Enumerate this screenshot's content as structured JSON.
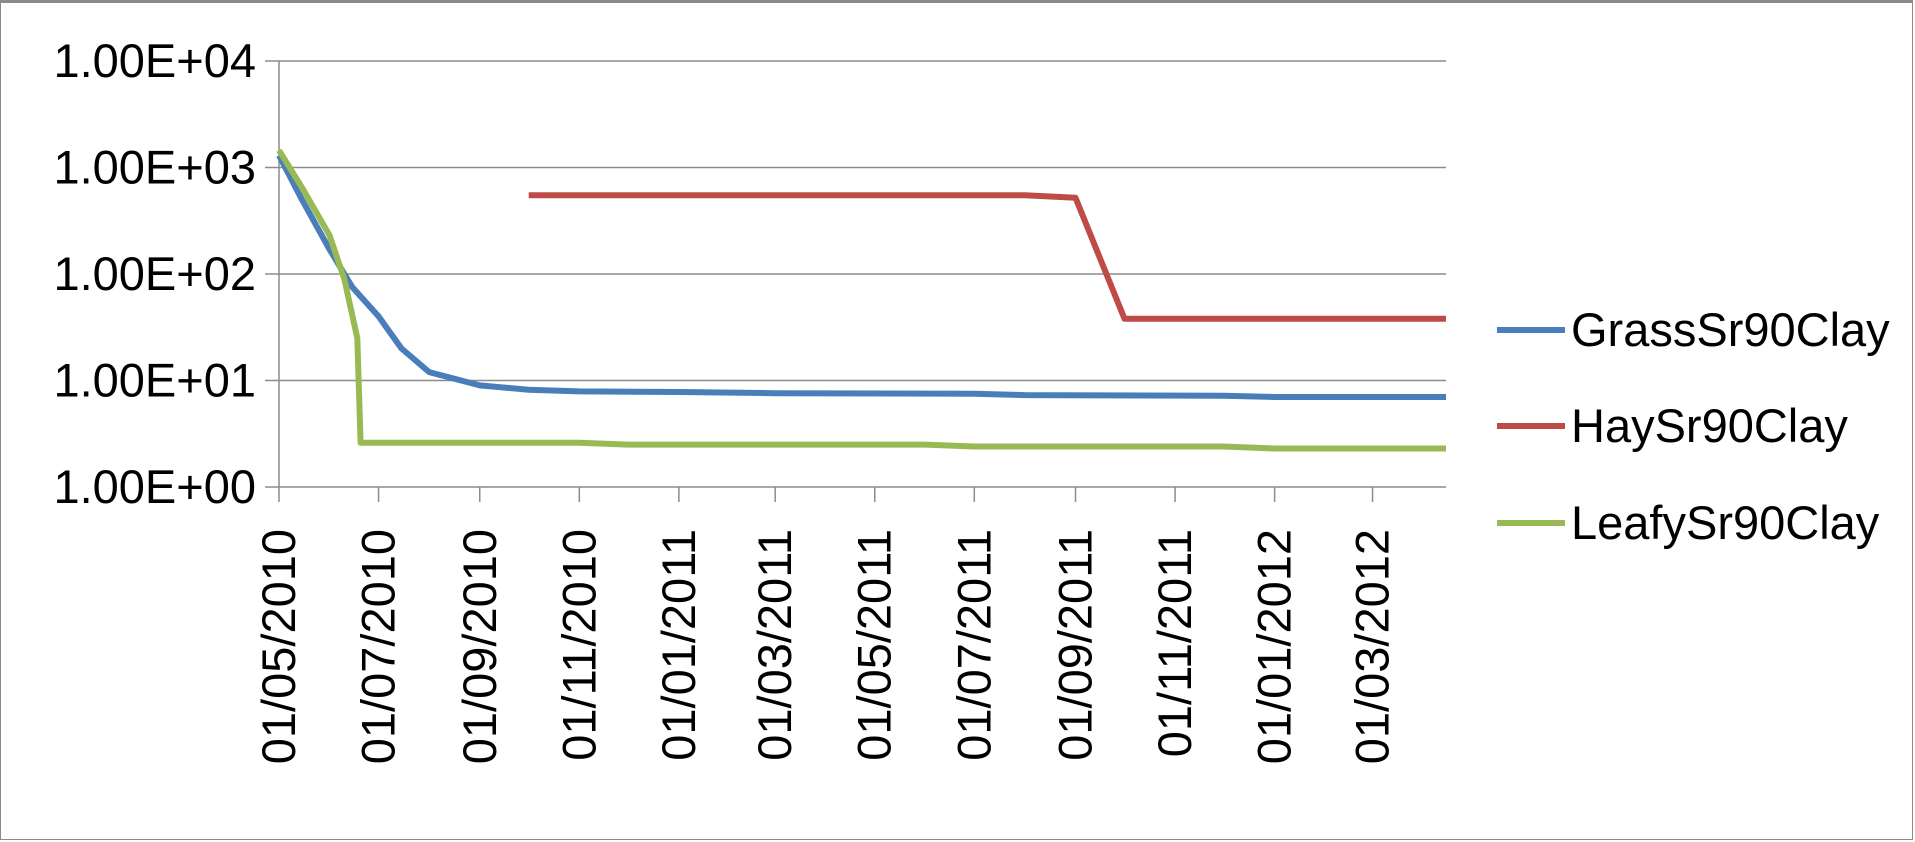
{
  "chart_data": {
    "type": "line",
    "title": "",
    "xlabel": "",
    "ylabel": "",
    "y_scale": "log",
    "ylim": [
      1,
      10000
    ],
    "y_ticks": [
      1,
      10,
      100,
      1000,
      10000
    ],
    "y_tick_labels": [
      "1.00E+00",
      "1.00E+01",
      "1.00E+02",
      "1.00E+03",
      "1.00E+04"
    ],
    "xlim": [
      "2010-05-01",
      "2012-04-15"
    ],
    "x_ticks": [
      "2010-05-01",
      "2010-07-01",
      "2010-09-01",
      "2010-11-01",
      "2011-01-01",
      "2011-03-01",
      "2011-05-01",
      "2011-07-01",
      "2011-09-01",
      "2011-11-01",
      "2012-01-01",
      "2012-03-01"
    ],
    "x_tick_labels": [
      "01/05/2010",
      "01/07/2010",
      "01/09/2010",
      "01/11/2010",
      "01/01/2011",
      "01/03/2011",
      "01/05/2011",
      "01/07/2011",
      "01/09/2011",
      "01/11/2011",
      "01/01/2012",
      "01/03/2012"
    ],
    "grid": "horizontal major gridlines",
    "legend_position": "right",
    "series": [
      {
        "name": "GrassSr90Clay",
        "color": "#4a7ebb",
        "points": [
          [
            "2010-05-01",
            1300
          ],
          [
            "2010-05-15",
            500
          ],
          [
            "2010-06-01",
            170
          ],
          [
            "2010-06-15",
            75
          ],
          [
            "2010-07-01",
            40
          ],
          [
            "2010-07-15",
            20
          ],
          [
            "2010-08-01",
            12
          ],
          [
            "2010-09-01",
            9
          ],
          [
            "2010-10-01",
            8.2
          ],
          [
            "2010-11-01",
            7.9
          ],
          [
            "2011-01-01",
            7.8
          ],
          [
            "2011-03-01",
            7.6
          ],
          [
            "2011-07-01",
            7.5
          ],
          [
            "2011-08-01",
            7.3
          ],
          [
            "2011-12-01",
            7.2
          ],
          [
            "2012-01-01",
            7.0
          ],
          [
            "2012-04-15",
            7.0
          ]
        ]
      },
      {
        "name": "HaySr90Clay",
        "color": "#be4b48",
        "points": [
          [
            "2010-10-01",
            550
          ],
          [
            "2011-08-01",
            550
          ],
          [
            "2011-09-01",
            520
          ],
          [
            "2011-10-01",
            38
          ],
          [
            "2012-04-15",
            38
          ]
        ]
      },
      {
        "name": "LeafySr90Clay",
        "color": "#98b954",
        "points": [
          [
            "2010-05-01",
            1450
          ],
          [
            "2010-05-15",
            650
          ],
          [
            "2010-06-01",
            230
          ],
          [
            "2010-06-10",
            90
          ],
          [
            "2010-06-18",
            25
          ],
          [
            "2010-06-20",
            2.6
          ],
          [
            "2010-09-01",
            2.6
          ],
          [
            "2010-11-01",
            2.6
          ],
          [
            "2010-12-01",
            2.5
          ],
          [
            "2011-06-01",
            2.5
          ],
          [
            "2011-07-01",
            2.4
          ],
          [
            "2011-12-01",
            2.4
          ],
          [
            "2012-01-01",
            2.3
          ],
          [
            "2012-04-15",
            2.3
          ]
        ]
      }
    ]
  }
}
